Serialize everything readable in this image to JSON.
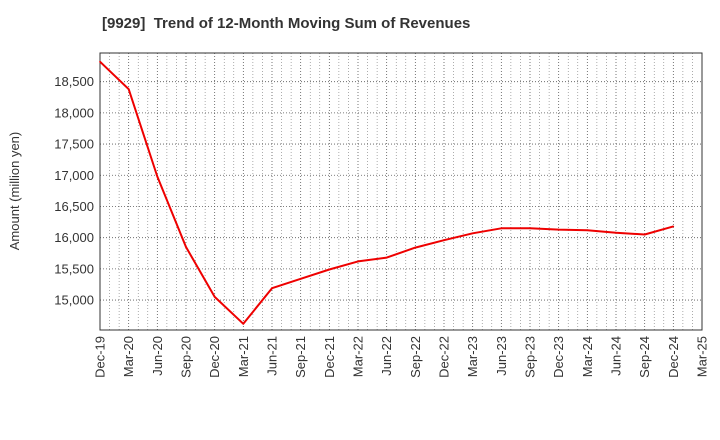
{
  "chart_data": {
    "type": "line",
    "title": "[9929]  Trend of 12-Month Moving Sum of Revenues",
    "xlabel": "",
    "ylabel": "Amount (million yen)",
    "categories": [
      "Dec-19",
      "Mar-20",
      "Jun-20",
      "Sep-20",
      "Dec-20",
      "Mar-21",
      "Jun-21",
      "Sep-21",
      "Dec-21",
      "Mar-22",
      "Jun-22",
      "Sep-22",
      "Dec-22",
      "Mar-23",
      "Jun-23",
      "Sep-23",
      "Dec-23",
      "Mar-24",
      "Jun-24",
      "Sep-24",
      "Dec-24",
      "Mar-25"
    ],
    "series": [
      {
        "values": [
          18820,
          18380,
          16980,
          15850,
          15050,
          14620,
          15190,
          15340,
          15490,
          15620,
          15680,
          15840,
          15960,
          16070,
          16150,
          16150,
          16130,
          16120,
          16080,
          16050,
          16180,
          null
        ],
        "color": "#ee0000"
      }
    ],
    "ylim": [
      14520,
      18960
    ],
    "yticks": [
      15000,
      15500,
      16000,
      16500,
      17000,
      17500,
      18000,
      18500
    ],
    "ytick_labels": [
      "15,000",
      "15,500",
      "16,000",
      "16,500",
      "17,000",
      "17,500",
      "18,000",
      "18,500"
    ],
    "grid": true,
    "grid_style": "dotted",
    "legend": "none"
  }
}
